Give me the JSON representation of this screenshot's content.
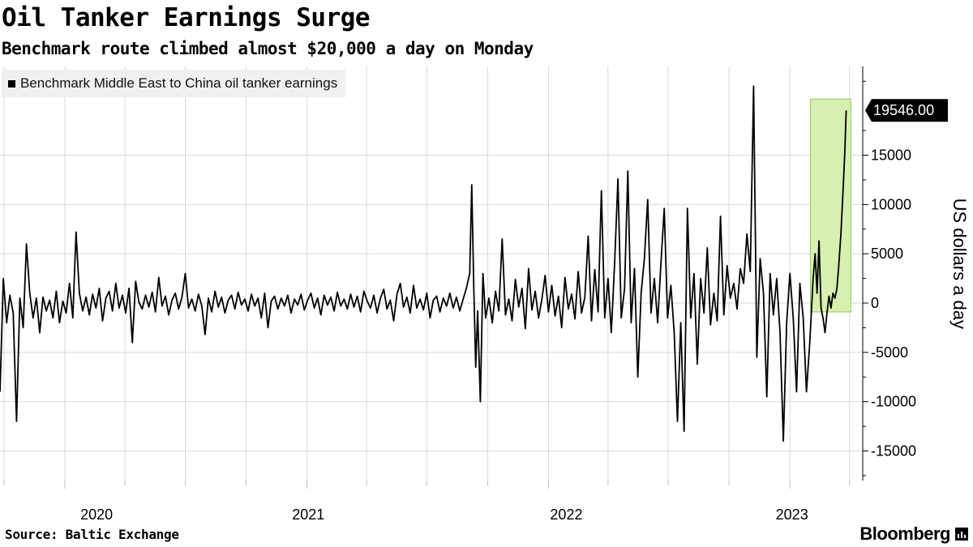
{
  "title": "Oil Tanker Earnings Surge",
  "subtitle": "Benchmark route climbed almost $20,000 a day on Monday",
  "source": "Source:  Baltic Exchange",
  "brand": "Bloomberg",
  "colors": {
    "line": "#000000",
    "highlight_fill": "#d7efaf",
    "highlight_stroke": "#97c95f",
    "grid": "#d9d9d9",
    "legend_bg": "#f0f0f0"
  },
  "chart_data": {
    "type": "line",
    "title": "Oil Tanker Earnings Surge",
    "subtitle": "Benchmark route climbed almost $20,000 a day on Monday",
    "ylabel": "US dollars a day",
    "xlabel": "",
    "ylim": [
      -18000,
      24000
    ],
    "xlim": [
      "2019-09-25",
      "2023-04-21"
    ],
    "y_ticks": [
      -15000,
      -10000,
      -5000,
      0,
      5000,
      10000,
      15000
    ],
    "y_tick_labels": [
      "-15000",
      "-10000",
      "-5000",
      "0",
      "5000",
      "10000",
      "15000"
    ],
    "x_tick_labels": [
      {
        "label": "2020",
        "date": "2020-02-18"
      },
      {
        "label": "2021",
        "date": "2021-01-03"
      },
      {
        "label": "2022",
        "date": "2022-01-28"
      },
      {
        "label": "2023",
        "date": "2023-01-04"
      }
    ],
    "grid": "vertical and horizontal, light gray",
    "legend": {
      "position": "top-left",
      "entries": [
        "Benchmark Middle East to China oil tanker earnings"
      ]
    },
    "last_value": {
      "label": "19546.00",
      "value": 19546
    },
    "highlight": {
      "x_range": [
        "2023-02-01",
        "2023-04-03"
      ],
      "y_range": [
        -900,
        20700
      ],
      "description": "green shaded box around recent surge"
    },
    "series": [
      {
        "name": "Benchmark Middle East to China oil tanker earnings",
        "points": [
          [
            "2019-09-25",
            -9000
          ],
          [
            "2019-09-30",
            2500
          ],
          [
            "2019-10-05",
            -2000
          ],
          [
            "2019-10-10",
            800
          ],
          [
            "2019-10-15",
            -1000
          ],
          [
            "2019-10-20",
            -12000
          ],
          [
            "2019-10-25",
            500
          ],
          [
            "2019-10-30",
            -2500
          ],
          [
            "2019-11-04",
            6000
          ],
          [
            "2019-11-09",
            1000
          ],
          [
            "2019-11-14",
            -1500
          ],
          [
            "2019-11-19",
            500
          ],
          [
            "2019-11-24",
            -3000
          ],
          [
            "2019-11-29",
            600
          ],
          [
            "2019-12-04",
            -800
          ],
          [
            "2019-12-09",
            300
          ],
          [
            "2019-12-14",
            -1500
          ],
          [
            "2019-12-19",
            1200
          ],
          [
            "2019-12-24",
            -2000
          ],
          [
            "2019-12-29",
            200
          ],
          [
            "2020-01-03",
            -1000
          ],
          [
            "2020-01-08",
            2000
          ],
          [
            "2020-01-13",
            -1500
          ],
          [
            "2020-01-18",
            7200
          ],
          [
            "2020-01-23",
            1000
          ],
          [
            "2020-01-28",
            -800
          ],
          [
            "2020-02-02",
            600
          ],
          [
            "2020-02-07",
            -1200
          ],
          [
            "2020-02-12",
            900
          ],
          [
            "2020-02-17",
            -500
          ],
          [
            "2020-02-22",
            1500
          ],
          [
            "2020-02-27",
            -1800
          ],
          [
            "2020-03-03",
            500
          ],
          [
            "2020-03-08",
            1200
          ],
          [
            "2020-03-13",
            -800
          ],
          [
            "2020-03-18",
            2000
          ],
          [
            "2020-03-23",
            -500
          ],
          [
            "2020-03-28",
            800
          ],
          [
            "2020-04-02",
            -1000
          ],
          [
            "2020-04-07",
            1500
          ],
          [
            "2020-04-12",
            -4000
          ],
          [
            "2020-04-17",
            2200
          ],
          [
            "2020-04-22",
            100
          ],
          [
            "2020-04-27",
            -600
          ],
          [
            "2020-05-02",
            800
          ],
          [
            "2020-05-07",
            -400
          ],
          [
            "2020-05-12",
            1100
          ],
          [
            "2020-05-17",
            -900
          ],
          [
            "2020-05-22",
            2600
          ],
          [
            "2020-05-27",
            -300
          ],
          [
            "2020-06-01",
            700
          ],
          [
            "2020-06-06",
            -1200
          ],
          [
            "2020-06-11",
            300
          ],
          [
            "2020-06-16",
            1000
          ],
          [
            "2020-06-21",
            -600
          ],
          [
            "2020-06-26",
            600
          ],
          [
            "2020-07-01",
            3000
          ],
          [
            "2020-07-06",
            -500
          ],
          [
            "2020-07-11",
            400
          ],
          [
            "2020-07-16",
            -800
          ],
          [
            "2020-07-21",
            900
          ],
          [
            "2020-07-26",
            -300
          ],
          [
            "2020-07-31",
            -3200
          ],
          [
            "2020-08-05",
            500
          ],
          [
            "2020-08-10",
            -900
          ],
          [
            "2020-08-15",
            1200
          ],
          [
            "2020-08-20",
            -400
          ],
          [
            "2020-08-25",
            600
          ],
          [
            "2020-08-30",
            -1000
          ],
          [
            "2020-09-04",
            300
          ],
          [
            "2020-09-09",
            800
          ],
          [
            "2020-09-14",
            -600
          ],
          [
            "2020-09-19",
            1100
          ],
          [
            "2020-09-24",
            -200
          ],
          [
            "2020-09-29",
            400
          ],
          [
            "2020-10-04",
            -800
          ],
          [
            "2020-10-09",
            900
          ],
          [
            "2020-10-14",
            -300
          ],
          [
            "2020-10-19",
            500
          ],
          [
            "2020-10-24",
            -1500
          ],
          [
            "2020-10-29",
            1000
          ],
          [
            "2020-11-03",
            -2500
          ],
          [
            "2020-11-08",
            200
          ],
          [
            "2020-11-13",
            700
          ],
          [
            "2020-11-18",
            -600
          ],
          [
            "2020-11-23",
            500
          ],
          [
            "2020-11-28",
            -300
          ],
          [
            "2020-12-03",
            800
          ],
          [
            "2020-12-08",
            -1000
          ],
          [
            "2020-12-13",
            400
          ],
          [
            "2020-12-18",
            -200
          ],
          [
            "2020-12-23",
            900
          ],
          [
            "2020-12-28",
            -700
          ],
          [
            "2021-01-02",
            300
          ],
          [
            "2021-01-07",
            1000
          ],
          [
            "2021-01-12",
            -500
          ],
          [
            "2021-01-17",
            500
          ],
          [
            "2021-01-22",
            -1200
          ],
          [
            "2021-01-27",
            800
          ],
          [
            "2021-02-01",
            -200
          ],
          [
            "2021-02-06",
            600
          ],
          [
            "2021-02-11",
            -800
          ],
          [
            "2021-02-16",
            1100
          ],
          [
            "2021-02-21",
            -300
          ],
          [
            "2021-02-26",
            400
          ],
          [
            "2021-03-03",
            -600
          ],
          [
            "2021-03-08",
            900
          ],
          [
            "2021-03-13",
            -400
          ],
          [
            "2021-03-18",
            700
          ],
          [
            "2021-03-23",
            -900
          ],
          [
            "2021-03-28",
            1200
          ],
          [
            "2021-04-02",
            200
          ],
          [
            "2021-04-07",
            -500
          ],
          [
            "2021-04-12",
            800
          ],
          [
            "2021-04-17",
            -1000
          ],
          [
            "2021-04-22",
            500
          ],
          [
            "2021-04-27",
            1400
          ],
          [
            "2021-05-02",
            -600
          ],
          [
            "2021-05-07",
            300
          ],
          [
            "2021-05-12",
            -1800
          ],
          [
            "2021-05-17",
            900
          ],
          [
            "2021-05-22",
            2000
          ],
          [
            "2021-05-27",
            -400
          ],
          [
            "2021-06-01",
            600
          ],
          [
            "2021-06-06",
            -1000
          ],
          [
            "2021-06-11",
            1800
          ],
          [
            "2021-06-16",
            -500
          ],
          [
            "2021-06-21",
            400
          ],
          [
            "2021-06-26",
            -700
          ],
          [
            "2021-07-01",
            1000
          ],
          [
            "2021-07-06",
            -1500
          ],
          [
            "2021-07-11",
            300
          ],
          [
            "2021-07-16",
            700
          ],
          [
            "2021-07-21",
            -900
          ],
          [
            "2021-07-26",
            500
          ],
          [
            "2021-07-31",
            -300
          ],
          [
            "2021-08-05",
            1000
          ],
          [
            "2021-08-10",
            -500
          ],
          [
            "2021-08-15",
            600
          ],
          [
            "2021-08-20",
            -800
          ],
          [
            "2021-08-25",
            400
          ],
          [
            "2021-08-30",
            1500
          ],
          [
            "2021-09-04",
            3000
          ],
          [
            "2021-09-07",
            12000
          ],
          [
            "2021-09-10",
            2000
          ],
          [
            "2021-09-13",
            -6500
          ],
          [
            "2021-09-16",
            -800
          ],
          [
            "2021-09-20",
            -10000
          ],
          [
            "2021-09-24",
            3000
          ],
          [
            "2021-09-28",
            -1500
          ],
          [
            "2021-10-03",
            500
          ],
          [
            "2021-10-08",
            -2000
          ],
          [
            "2021-10-13",
            1200
          ],
          [
            "2021-10-18",
            -800
          ],
          [
            "2021-10-23",
            6500
          ],
          [
            "2021-10-28",
            -1200
          ],
          [
            "2021-11-02",
            400
          ],
          [
            "2021-11-07",
            -1800
          ],
          [
            "2021-11-12",
            2400
          ],
          [
            "2021-11-17",
            -400
          ],
          [
            "2021-11-22",
            1500
          ],
          [
            "2021-11-27",
            -2600
          ],
          [
            "2021-12-02",
            3500
          ],
          [
            "2021-12-07",
            -700
          ],
          [
            "2021-12-12",
            1200
          ],
          [
            "2021-12-17",
            -1500
          ],
          [
            "2021-12-22",
            400
          ],
          [
            "2021-12-27",
            2800
          ],
          [
            "2022-01-01",
            -900
          ],
          [
            "2022-01-06",
            1800
          ],
          [
            "2022-01-11",
            -1300
          ],
          [
            "2022-01-16",
            700
          ],
          [
            "2022-01-21",
            -2500
          ],
          [
            "2022-01-26",
            2600
          ],
          [
            "2022-01-31",
            -600
          ],
          [
            "2022-02-05",
            900
          ],
          [
            "2022-02-10",
            -1600
          ],
          [
            "2022-02-15",
            3200
          ],
          [
            "2022-02-20",
            -1000
          ],
          [
            "2022-02-25",
            600
          ],
          [
            "2022-03-02",
            6800
          ],
          [
            "2022-03-07",
            -1800
          ],
          [
            "2022-03-12",
            3400
          ],
          [
            "2022-03-17",
            -900
          ],
          [
            "2022-03-22",
            11400
          ],
          [
            "2022-03-27",
            -1500
          ],
          [
            "2022-04-01",
            2500
          ],
          [
            "2022-04-06",
            -3000
          ],
          [
            "2022-04-11",
            4000
          ],
          [
            "2022-04-16",
            12600
          ],
          [
            "2022-04-21",
            -1500
          ],
          [
            "2022-04-26",
            1500
          ],
          [
            "2022-05-01",
            13400
          ],
          [
            "2022-05-06",
            -2000
          ],
          [
            "2022-05-11",
            3500
          ],
          [
            "2022-05-16",
            -7500
          ],
          [
            "2022-05-21",
            1000
          ],
          [
            "2022-05-26",
            4500
          ],
          [
            "2022-05-31",
            10500
          ],
          [
            "2022-06-05",
            -1000
          ],
          [
            "2022-06-10",
            2500
          ],
          [
            "2022-06-15",
            -2000
          ],
          [
            "2022-06-20",
            4000
          ],
          [
            "2022-06-25",
            9600
          ],
          [
            "2022-06-30",
            -1500
          ],
          [
            "2022-07-05",
            1800
          ],
          [
            "2022-07-10",
            -3000
          ],
          [
            "2022-07-15",
            -12000
          ],
          [
            "2022-07-20",
            -2000
          ],
          [
            "2022-07-25",
            -13000
          ],
          [
            "2022-07-30",
            9600
          ],
          [
            "2022-08-04",
            -1500
          ],
          [
            "2022-08-09",
            3000
          ],
          [
            "2022-08-14",
            -6200
          ],
          [
            "2022-08-19",
            2500
          ],
          [
            "2022-08-24",
            -1000
          ],
          [
            "2022-08-29",
            5600
          ],
          [
            "2022-09-03",
            -2200
          ],
          [
            "2022-09-08",
            1000
          ],
          [
            "2022-09-13",
            -1800
          ],
          [
            "2022-09-18",
            8800
          ],
          [
            "2022-09-23",
            -1200
          ],
          [
            "2022-09-28",
            3800
          ],
          [
            "2022-10-03",
            500
          ],
          [
            "2022-10-08",
            2000
          ],
          [
            "2022-10-13",
            -600
          ],
          [
            "2022-10-18",
            3500
          ],
          [
            "2022-10-23",
            2000
          ],
          [
            "2022-10-28",
            7000
          ],
          [
            "2022-11-02",
            3200
          ],
          [
            "2022-11-07",
            22000
          ],
          [
            "2022-11-12",
            -5500
          ],
          [
            "2022-11-17",
            4500
          ],
          [
            "2022-11-22",
            1000
          ],
          [
            "2022-11-27",
            -9500
          ],
          [
            "2022-12-02",
            3000
          ],
          [
            "2022-12-07",
            -1200
          ],
          [
            "2022-12-12",
            2500
          ],
          [
            "2022-12-17",
            -3000
          ],
          [
            "2022-12-22",
            -14000
          ],
          [
            "2022-12-27",
            -2000
          ],
          [
            "2023-01-01",
            3000
          ],
          [
            "2023-01-06",
            -1500
          ],
          [
            "2023-01-11",
            -9000
          ],
          [
            "2023-01-16",
            2000
          ],
          [
            "2023-01-21",
            -1500
          ],
          [
            "2023-01-26",
            -9000
          ],
          [
            "2023-01-31",
            -4000
          ],
          [
            "2023-02-05",
            2500
          ],
          [
            "2023-02-08",
            5000
          ],
          [
            "2023-02-11",
            1000
          ],
          [
            "2023-02-14",
            6300
          ],
          [
            "2023-02-17",
            -500
          ],
          [
            "2023-02-20",
            -1500
          ],
          [
            "2023-02-23",
            -3000
          ],
          [
            "2023-02-26",
            -1000
          ],
          [
            "2023-03-01",
            700
          ],
          [
            "2023-03-04",
            -500
          ],
          [
            "2023-03-07",
            1000
          ],
          [
            "2023-03-10",
            500
          ],
          [
            "2023-03-13",
            1500
          ],
          [
            "2023-03-16",
            4000
          ],
          [
            "2023-03-19",
            7000
          ],
          [
            "2023-03-22",
            11000
          ],
          [
            "2023-03-25",
            15500
          ],
          [
            "2023-03-27",
            19546
          ]
        ]
      }
    ]
  }
}
